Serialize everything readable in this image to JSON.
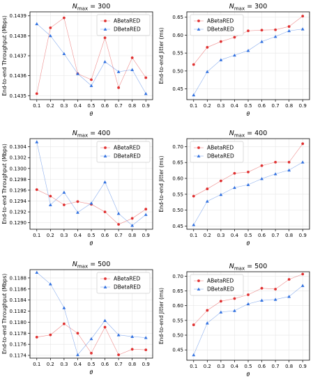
{
  "chart_data": [
    {
      "type": "line",
      "title": "N_max = 300",
      "title_main": "N",
      "title_sub": "max",
      "title_rest": " = 300",
      "xlabel": "θ",
      "ylabel": "End-to-end Throughput (Mbps)",
      "x": [
        0.1,
        0.2,
        0.3,
        0.4,
        0.5,
        0.6,
        0.7,
        0.8,
        0.9
      ],
      "xticks": [
        "0.1",
        "0.2",
        "0.3",
        "0.4",
        "0.5",
        "0.6",
        "0.7",
        "0.8",
        "0.9"
      ],
      "xlim": [
        0.05,
        0.95
      ],
      "ylim": [
        0.14348,
        0.14392
      ],
      "yticks": [
        0.1435,
        0.1436,
        0.1437,
        0.1438,
        0.1439
      ],
      "ytick_labels": [
        "0.1435",
        "0.1436",
        "0.1437",
        "0.1438",
        "0.1439"
      ],
      "legend": "top-right",
      "grid": true,
      "series": [
        {
          "name": "ABetaRED",
          "color": "#e03030",
          "marker": "circle",
          "values": [
            0.14351,
            0.14384,
            0.14389,
            0.14361,
            0.14358,
            0.14379,
            0.14354,
            0.14369,
            0.14359
          ]
        },
        {
          "name": "DBetaRED",
          "color": "#3070e0",
          "marker": "triangle",
          "values": [
            0.14386,
            0.1438,
            0.14371,
            0.14361,
            0.14355,
            0.14367,
            0.14362,
            0.14363,
            0.14351
          ]
        }
      ]
    },
    {
      "type": "line",
      "title": "N_max = 300",
      "title_main": "N",
      "title_sub": "max",
      "title_rest": " = 300",
      "xlabel": "θ",
      "ylabel": "End-to-end Jitter (ms)",
      "x": [
        0.1,
        0.2,
        0.3,
        0.4,
        0.5,
        0.6,
        0.7,
        0.8,
        0.9
      ],
      "xticks": [
        "0.1",
        "0.2",
        "0.3",
        "0.4",
        "0.5",
        "0.6",
        "0.7",
        "0.8",
        "0.9"
      ],
      "xlim": [
        0.05,
        0.95
      ],
      "ylim": [
        0.42,
        0.665
      ],
      "yticks": [
        0.45,
        0.5,
        0.55,
        0.6,
        0.65
      ],
      "ytick_labels": [
        "0.45",
        "0.50",
        "0.55",
        "0.60",
        "0.65"
      ],
      "legend": "top-left",
      "grid": true,
      "series": [
        {
          "name": "ABetaRED",
          "color": "#e03030",
          "marker": "circle",
          "values": [
            0.518,
            0.566,
            0.582,
            0.594,
            0.612,
            0.614,
            0.615,
            0.624,
            0.653
          ]
        },
        {
          "name": "DBetaRED",
          "color": "#3070e0",
          "marker": "triangle",
          "values": [
            0.433,
            0.498,
            0.531,
            0.544,
            0.557,
            0.582,
            0.596,
            0.612,
            0.617
          ]
        }
      ]
    },
    {
      "type": "line",
      "title": "N_max = 400",
      "title_main": "N",
      "title_sub": "max",
      "title_rest": " = 400",
      "xlabel": "θ",
      "ylabel": "End-to-end Throughput (Mbps)",
      "x": [
        0.1,
        0.2,
        0.3,
        0.4,
        0.5,
        0.6,
        0.7,
        0.8,
        0.9
      ],
      "xticks": [
        "0.1",
        "0.2",
        "0.3",
        "0.4",
        "0.5",
        "0.6",
        "0.7",
        "0.8",
        "0.9"
      ],
      "xlim": [
        0.05,
        0.95
      ],
      "ylim": [
        0.12888,
        0.13055
      ],
      "yticks": [
        0.129,
        0.1292,
        0.1294,
        0.1296,
        0.1298,
        0.13,
        0.1302,
        0.1304
      ],
      "ytick_labels": [
        "0.1290",
        "0.1292",
        "0.1294",
        "0.1296",
        "0.1298",
        "0.1300",
        "0.1302",
        "0.1304"
      ],
      "legend": "top-right",
      "grid": true,
      "series": [
        {
          "name": "ABetaRED",
          "color": "#e03030",
          "marker": "circle",
          "values": [
            0.12961,
            0.12949,
            0.12933,
            0.12939,
            0.12934,
            0.1292,
            0.12897,
            0.12908,
            0.12925
          ]
        },
        {
          "name": "DBetaRED",
          "color": "#3070e0",
          "marker": "triangle",
          "values": [
            0.13049,
            0.12933,
            0.12956,
            0.12919,
            0.12936,
            0.12975,
            0.12917,
            0.12895,
            0.12915
          ]
        }
      ]
    },
    {
      "type": "line",
      "title": "N_max = 400",
      "title_main": "N",
      "title_sub": "max",
      "title_rest": " = 400",
      "xlabel": "θ",
      "ylabel": "End-to-end Jitter (ms)",
      "x": [
        0.1,
        0.2,
        0.3,
        0.4,
        0.5,
        0.6,
        0.7,
        0.8,
        0.9
      ],
      "xticks": [
        "0.1",
        "0.2",
        "0.3",
        "0.4",
        "0.5",
        "0.6",
        "0.7",
        "0.8",
        "0.9"
      ],
      "xlim": [
        0.05,
        0.95
      ],
      "ylim": [
        0.44,
        0.725
      ],
      "yticks": [
        0.45,
        0.5,
        0.55,
        0.6,
        0.65,
        0.7
      ],
      "ytick_labels": [
        "0.45",
        "0.50",
        "0.55",
        "0.60",
        "0.65",
        "0.70"
      ],
      "legend": "top-left",
      "grid": true,
      "series": [
        {
          "name": "ABetaRED",
          "color": "#e03030",
          "marker": "circle",
          "values": [
            0.544,
            0.567,
            0.592,
            0.616,
            0.62,
            0.64,
            0.651,
            0.651,
            0.709
          ]
        },
        {
          "name": "DBetaRED",
          "color": "#3070e0",
          "marker": "triangle",
          "values": [
            0.454,
            0.528,
            0.549,
            0.571,
            0.58,
            0.599,
            0.614,
            0.626,
            0.651
          ]
        }
      ]
    },
    {
      "type": "line",
      "title": "N_max = 500",
      "title_main": "N",
      "title_sub": "max",
      "title_rest": " = 500",
      "xlabel": "θ",
      "ylabel": "End-to-end Throughput (Mbps)",
      "x": [
        0.1,
        0.2,
        0.3,
        0.4,
        0.5,
        0.6,
        0.7,
        0.8,
        0.9
      ],
      "xticks": [
        "0.1",
        "0.2",
        "0.3",
        "0.4",
        "0.5",
        "0.6",
        "0.7",
        "0.8",
        "0.9"
      ],
      "xlim": [
        0.05,
        0.95
      ],
      "ylim": [
        0.11735,
        0.11895
      ],
      "yticks": [
        0.1174,
        0.1176,
        0.1178,
        0.118,
        0.1182,
        0.1184,
        0.1186,
        0.1188
      ],
      "ytick_labels": [
        "0.1174",
        "0.1176",
        "0.1178",
        "0.1180",
        "0.1182",
        "0.1184",
        "0.1186",
        "0.1188"
      ],
      "legend": "top-right",
      "grid": true,
      "series": [
        {
          "name": "ABetaRED",
          "color": "#e03030",
          "marker": "circle",
          "values": [
            0.11773,
            0.11777,
            0.11797,
            0.1178,
            0.11744,
            0.11791,
            0.11741,
            0.11751,
            0.1175
          ]
        },
        {
          "name": "DBetaRED",
          "color": "#3070e0",
          "marker": "triangle",
          "values": [
            0.1189,
            0.11869,
            0.11826,
            0.11741,
            0.1177,
            0.11803,
            0.11777,
            0.11774,
            0.11772
          ]
        }
      ]
    },
    {
      "type": "line",
      "title": "N_max = 500",
      "title_main": "N",
      "title_sub": "max",
      "title_rest": " = 500",
      "xlabel": "θ",
      "ylabel": "End-to-end Jitter (ms)",
      "x": [
        0.1,
        0.2,
        0.3,
        0.4,
        0.5,
        0.6,
        0.7,
        0.8,
        0.9
      ],
      "xticks": [
        "0.1",
        "0.2",
        "0.3",
        "0.4",
        "0.5",
        "0.6",
        "0.7",
        "0.8",
        "0.9"
      ],
      "xlim": [
        0.05,
        0.95
      ],
      "ylim": [
        0.415,
        0.715
      ],
      "yticks": [
        0.45,
        0.5,
        0.55,
        0.6,
        0.65,
        0.7
      ],
      "ytick_labels": [
        "0.45",
        "0.50",
        "0.55",
        "0.60",
        "0.65",
        "0.70"
      ],
      "legend": "top-left",
      "grid": true,
      "series": [
        {
          "name": "ABetaRED",
          "color": "#e03030",
          "marker": "circle",
          "values": [
            0.535,
            0.584,
            0.615,
            0.624,
            0.637,
            0.659,
            0.656,
            0.689,
            0.707
          ]
        },
        {
          "name": "DBetaRED",
          "color": "#3070e0",
          "marker": "triangle",
          "values": [
            0.433,
            0.541,
            0.578,
            0.583,
            0.606,
            0.618,
            0.621,
            0.631,
            0.668
          ]
        }
      ]
    }
  ]
}
